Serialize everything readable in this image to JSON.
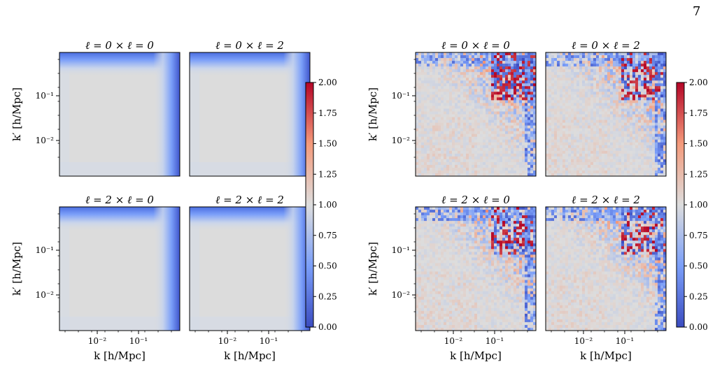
{
  "page_number": "7",
  "figure": {
    "colorbar_ticks": [
      "0.00",
      "0.25",
      "0.50",
      "0.75",
      "1.00",
      "1.25",
      "1.50",
      "1.75",
      "2.00"
    ],
    "colorbar_range": [
      0,
      2
    ],
    "colormap": "coolwarm",
    "x_ticks": [
      "10⁻²",
      "10⁻¹"
    ],
    "y_ticks": [
      "10⁻¹",
      "10⁻²"
    ],
    "xlabel": "k [h/Mpc]",
    "ylabel": "k′ [h/Mpc]",
    "groups": [
      {
        "panels": [
          {
            "title": "ℓ = 0 × ℓ = 0"
          },
          {
            "title": "ℓ = 0 × ℓ = 2"
          },
          {
            "title": "ℓ = 2 × ℓ = 0"
          },
          {
            "title": "ℓ = 2 × ℓ = 2"
          }
        ]
      },
      {
        "panels": [
          {
            "title": "ℓ = 0 × ℓ = 0"
          },
          {
            "title": "ℓ = 0 × ℓ = 2"
          },
          {
            "title": "ℓ = 2 × ℓ = 0"
          },
          {
            "title": "ℓ = 2 × ℓ = 2"
          }
        ]
      }
    ],
    "colors": {
      "low": "#3b4cc0",
      "mid": "#dddddd",
      "high": "#b40426"
    }
  }
}
